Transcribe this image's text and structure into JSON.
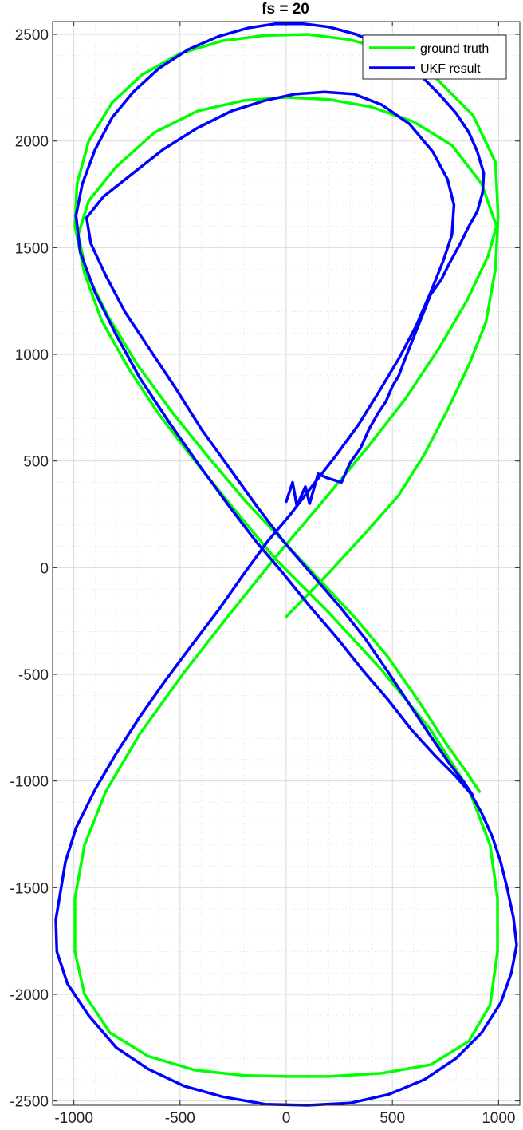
{
  "chart_data": {
    "type": "line",
    "title": "fs = 20",
    "xlabel": "",
    "ylabel": "",
    "xlim": [
      -1100,
      1100
    ],
    "ylim": [
      -2520,
      2560
    ],
    "xticks": [
      -1000,
      -500,
      0,
      500,
      1000
    ],
    "yticks": [
      -2500,
      -2000,
      -1500,
      -1000,
      -500,
      0,
      500,
      1000,
      1500,
      2000,
      2500
    ],
    "xtick_labels": [
      "-1000",
      "-500",
      "0",
      "500",
      "1000"
    ],
    "ytick_labels": [
      "-2500",
      "-2000",
      "-1500",
      "-1000",
      "-500",
      "0",
      "500",
      "1000",
      "1500",
      "2000",
      "2500"
    ],
    "grid": true,
    "minor_grid": true,
    "legend_position": "top-right",
    "series": [
      {
        "name": "ground truth",
        "color": "#00ff00",
        "points": [
          [
            0,
            -230
          ],
          [
            200,
            -25
          ],
          [
            380,
            170
          ],
          [
            530,
            340
          ],
          [
            650,
            530
          ],
          [
            760,
            740
          ],
          [
            860,
            950
          ],
          [
            940,
            1150
          ],
          [
            985,
            1400
          ],
          [
            998,
            1650
          ],
          [
            985,
            1900
          ],
          [
            880,
            2120
          ],
          [
            700,
            2300
          ],
          [
            500,
            2420
          ],
          [
            300,
            2475
          ],
          [
            100,
            2500
          ],
          [
            -100,
            2495
          ],
          [
            -300,
            2470
          ],
          [
            -500,
            2410
          ],
          [
            -680,
            2310
          ],
          [
            -820,
            2180
          ],
          [
            -930,
            2000
          ],
          [
            -985,
            1800
          ],
          [
            -995,
            1600
          ],
          [
            -950,
            1380
          ],
          [
            -870,
            1160
          ],
          [
            -740,
            930
          ],
          [
            -600,
            720
          ],
          [
            -430,
            500
          ],
          [
            -250,
            280
          ],
          [
            -50,
            40
          ],
          [
            200,
            -210
          ],
          [
            450,
            -480
          ],
          [
            680,
            -760
          ],
          [
            860,
            -1040
          ],
          [
            960,
            -1300
          ],
          [
            995,
            -1550
          ],
          [
            995,
            -1800
          ],
          [
            960,
            -2050
          ],
          [
            860,
            -2220
          ],
          [
            680,
            -2330
          ],
          [
            450,
            -2370
          ],
          [
            200,
            -2385
          ],
          [
            0,
            -2385
          ],
          [
            -200,
            -2380
          ],
          [
            -430,
            -2355
          ],
          [
            -650,
            -2290
          ],
          [
            -830,
            -2180
          ],
          [
            -950,
            -2000
          ],
          [
            -995,
            -1800
          ],
          [
            -995,
            -1550
          ],
          [
            -950,
            -1300
          ],
          [
            -850,
            -1050
          ],
          [
            -690,
            -780
          ],
          [
            -480,
            -490
          ],
          [
            -260,
            -210
          ],
          [
            -50,
            50
          ],
          [
            180,
            320
          ],
          [
            380,
            560
          ],
          [
            560,
            790
          ],
          [
            720,
            1030
          ],
          [
            850,
            1250
          ],
          [
            950,
            1460
          ],
          [
            990,
            1600
          ],
          [
            920,
            1800
          ],
          [
            780,
            1980
          ],
          [
            600,
            2090
          ],
          [
            400,
            2160
          ],
          [
            200,
            2195
          ],
          [
            0,
            2205
          ],
          [
            -200,
            2190
          ],
          [
            -420,
            2140
          ],
          [
            -620,
            2040
          ],
          [
            -800,
            1880
          ],
          [
            -930,
            1720
          ],
          [
            -980,
            1560
          ],
          [
            -940,
            1380
          ],
          [
            -840,
            1180
          ],
          [
            -700,
            950
          ],
          [
            -530,
            720
          ],
          [
            -360,
            510
          ],
          [
            -190,
            310
          ],
          [
            -20,
            130
          ],
          [
            150,
            -50
          ],
          [
            320,
            -230
          ],
          [
            480,
            -420
          ],
          [
            620,
            -620
          ],
          [
            750,
            -820
          ],
          [
            850,
            -960
          ],
          [
            910,
            -1050
          ]
        ]
      },
      {
        "name": "UKF result",
        "color": "#0000ff",
        "points": [
          [
            0,
            310
          ],
          [
            30,
            400
          ],
          [
            50,
            290
          ],
          [
            90,
            380
          ],
          [
            110,
            300
          ],
          [
            150,
            440
          ],
          [
            195,
            420
          ],
          [
            260,
            400
          ],
          [
            300,
            490
          ],
          [
            350,
            560
          ],
          [
            390,
            650
          ],
          [
            430,
            720
          ],
          [
            470,
            780
          ],
          [
            500,
            850
          ],
          [
            530,
            900
          ],
          [
            560,
            980
          ],
          [
            600,
            1080
          ],
          [
            640,
            1180
          ],
          [
            680,
            1280
          ],
          [
            730,
            1350
          ],
          [
            770,
            1430
          ],
          [
            820,
            1520
          ],
          [
            860,
            1600
          ],
          [
            900,
            1670
          ],
          [
            925,
            1760
          ],
          [
            930,
            1850
          ],
          [
            900,
            1950
          ],
          [
            860,
            2040
          ],
          [
            800,
            2130
          ],
          [
            720,
            2220
          ],
          [
            640,
            2300
          ],
          [
            540,
            2380
          ],
          [
            440,
            2450
          ],
          [
            330,
            2500
          ],
          [
            200,
            2535
          ],
          [
            80,
            2550
          ],
          [
            -50,
            2550
          ],
          [
            -180,
            2530
          ],
          [
            -320,
            2490
          ],
          [
            -460,
            2430
          ],
          [
            -600,
            2340
          ],
          [
            -720,
            2230
          ],
          [
            -820,
            2110
          ],
          [
            -900,
            1960
          ],
          [
            -960,
            1800
          ],
          [
            -990,
            1650
          ],
          [
            -970,
            1480
          ],
          [
            -900,
            1290
          ],
          [
            -800,
            1090
          ],
          [
            -690,
            890
          ],
          [
            -550,
            680
          ],
          [
            -410,
            480
          ],
          [
            -270,
            290
          ],
          [
            -140,
            120
          ],
          [
            -20,
            -20
          ],
          [
            110,
            -180
          ],
          [
            240,
            -330
          ],
          [
            360,
            -480
          ],
          [
            480,
            -620
          ],
          [
            590,
            -760
          ],
          [
            700,
            -880
          ],
          [
            800,
            -980
          ],
          [
            870,
            -1060
          ],
          [
            920,
            -1150
          ],
          [
            970,
            -1260
          ],
          [
            1010,
            -1380
          ],
          [
            1040,
            -1500
          ],
          [
            1070,
            -1640
          ],
          [
            1085,
            -1770
          ],
          [
            1060,
            -1900
          ],
          [
            1010,
            -2040
          ],
          [
            920,
            -2180
          ],
          [
            800,
            -2300
          ],
          [
            650,
            -2400
          ],
          [
            480,
            -2470
          ],
          [
            300,
            -2510
          ],
          [
            100,
            -2520
          ],
          [
            -100,
            -2515
          ],
          [
            -300,
            -2480
          ],
          [
            -480,
            -2430
          ],
          [
            -650,
            -2350
          ],
          [
            -800,
            -2250
          ],
          [
            -930,
            -2100
          ],
          [
            -1030,
            -1950
          ],
          [
            -1080,
            -1800
          ],
          [
            -1085,
            -1650
          ],
          [
            -1060,
            -1500
          ],
          [
            -1040,
            -1380
          ],
          [
            -990,
            -1220
          ],
          [
            -900,
            -1040
          ],
          [
            -800,
            -870
          ],
          [
            -690,
            -700
          ],
          [
            -570,
            -530
          ],
          [
            -450,
            -370
          ],
          [
            -320,
            -200
          ],
          [
            -200,
            -30
          ],
          [
            -90,
            120
          ],
          [
            20,
            250
          ],
          [
            120,
            380
          ],
          [
            230,
            520
          ],
          [
            340,
            670
          ],
          [
            440,
            830
          ],
          [
            530,
            980
          ],
          [
            610,
            1130
          ],
          [
            680,
            1290
          ],
          [
            740,
            1440
          ],
          [
            780,
            1560
          ],
          [
            790,
            1700
          ],
          [
            760,
            1820
          ],
          [
            690,
            1950
          ],
          [
            580,
            2080
          ],
          [
            450,
            2170
          ],
          [
            320,
            2220
          ],
          [
            180,
            2230
          ],
          [
            40,
            2220
          ],
          [
            -100,
            2190
          ],
          [
            -260,
            2140
          ],
          [
            -420,
            2060
          ],
          [
            -580,
            1960
          ],
          [
            -720,
            1850
          ],
          [
            -860,
            1740
          ],
          [
            -940,
            1640
          ],
          [
            -920,
            1520
          ],
          [
            -850,
            1370
          ],
          [
            -760,
            1200
          ],
          [
            -640,
            1020
          ],
          [
            -520,
            840
          ],
          [
            -400,
            650
          ],
          [
            -270,
            470
          ],
          [
            -140,
            290
          ],
          [
            -10,
            120
          ],
          [
            120,
            -30
          ],
          [
            250,
            -180
          ],
          [
            370,
            -330
          ],
          [
            480,
            -490
          ],
          [
            580,
            -640
          ],
          [
            680,
            -790
          ],
          [
            770,
            -920
          ],
          [
            840,
            -1010
          ],
          [
            880,
            -1070
          ]
        ]
      }
    ]
  }
}
